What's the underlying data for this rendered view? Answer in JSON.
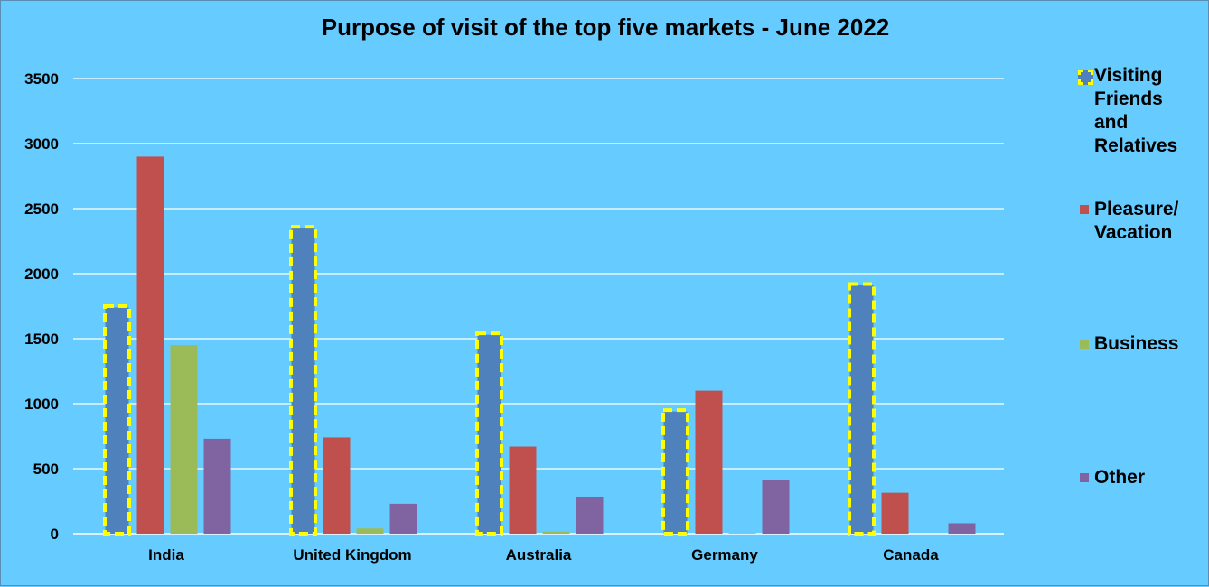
{
  "chart_data": {
    "type": "bar",
    "title": "Purpose of visit of the top five markets - June 2022",
    "xlabel": "",
    "ylabel": "",
    "categories": [
      "India",
      "United Kingdom",
      "Australia",
      "Germany",
      "Canada"
    ],
    "series": [
      {
        "name": "Visiting Friends and Relatives",
        "color": "#4f81bd",
        "highlight": "#ffff00",
        "values": [
          1740,
          2350,
          1530,
          940,
          1910
        ]
      },
      {
        "name": "Pleasure/ Vacation",
        "color": "#c0504d",
        "values": [
          2900,
          740,
          670,
          1100,
          315
        ]
      },
      {
        "name": "Business",
        "color": "#9bbb59",
        "values": [
          1450,
          40,
          15,
          5,
          0
        ]
      },
      {
        "name": "Other",
        "color": "#8064a2",
        "values": [
          730,
          230,
          285,
          415,
          80
        ]
      }
    ],
    "ylim": [
      0,
      3500
    ],
    "yticks": [
      0,
      500,
      1000,
      1500,
      2000,
      2500,
      3000,
      3500
    ],
    "grid": true,
    "legend_position": "right"
  },
  "legend": {
    "items": [
      {
        "lines": [
          "Visiting",
          "Friends",
          "and",
          "Relatives"
        ]
      },
      {
        "lines": [
          "Pleasure/",
          "Vacation"
        ]
      },
      {
        "lines": [
          "Business"
        ]
      },
      {
        "lines": [
          "Other"
        ]
      }
    ]
  },
  "colors": {
    "background": "#66ccff",
    "gridline": "#ffffff"
  }
}
